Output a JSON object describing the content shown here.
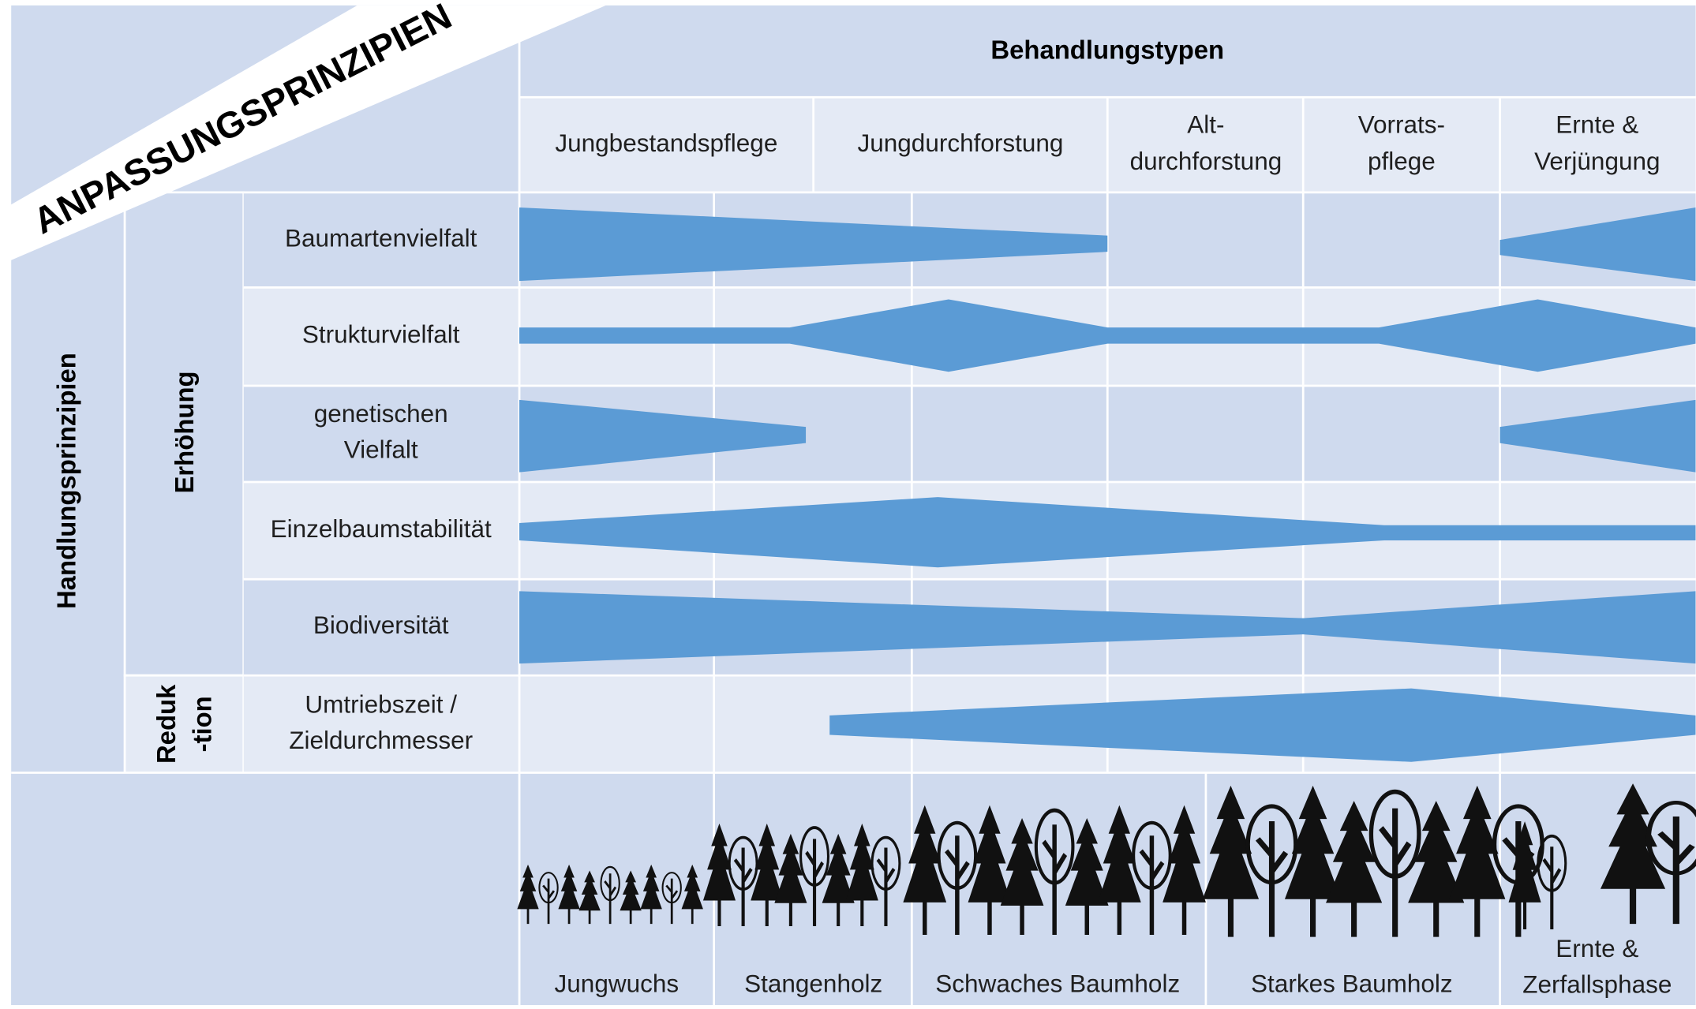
{
  "title": "ANPASSUNGSPRINZIPIEN",
  "header": "Behandlungstypen",
  "treatment_types": [
    [
      "Jungbestandspflege"
    ],
    [
      "Jungdurchforstung"
    ],
    [
      "Alt-",
      "durchforstung"
    ],
    [
      "Vorrats-",
      "pflege"
    ],
    [
      "Ernte &",
      "Verjüngung"
    ]
  ],
  "side_label": "Handlungsprinzipien",
  "groups": [
    [
      "Erhöhung"
    ],
    [
      "Reduk",
      "-tion"
    ]
  ],
  "rows": [
    [
      "Baumartenvielfalt"
    ],
    [
      "Strukturvielfalt"
    ],
    [
      "genetischen",
      "Vielfalt"
    ],
    [
      "Einzelbaumstabilität"
    ],
    [
      "Biodiversität"
    ],
    [
      "Umtriebszeit /",
      "Zieldurchmesser"
    ]
  ],
  "stages": [
    [
      "Jungwuchs"
    ],
    [
      "Stangenholz"
    ],
    [
      "Schwaches Baumholz"
    ],
    [
      "Starkes Baumholz"
    ],
    [
      "Ernte &",
      "Zerfallsphase"
    ]
  ]
}
